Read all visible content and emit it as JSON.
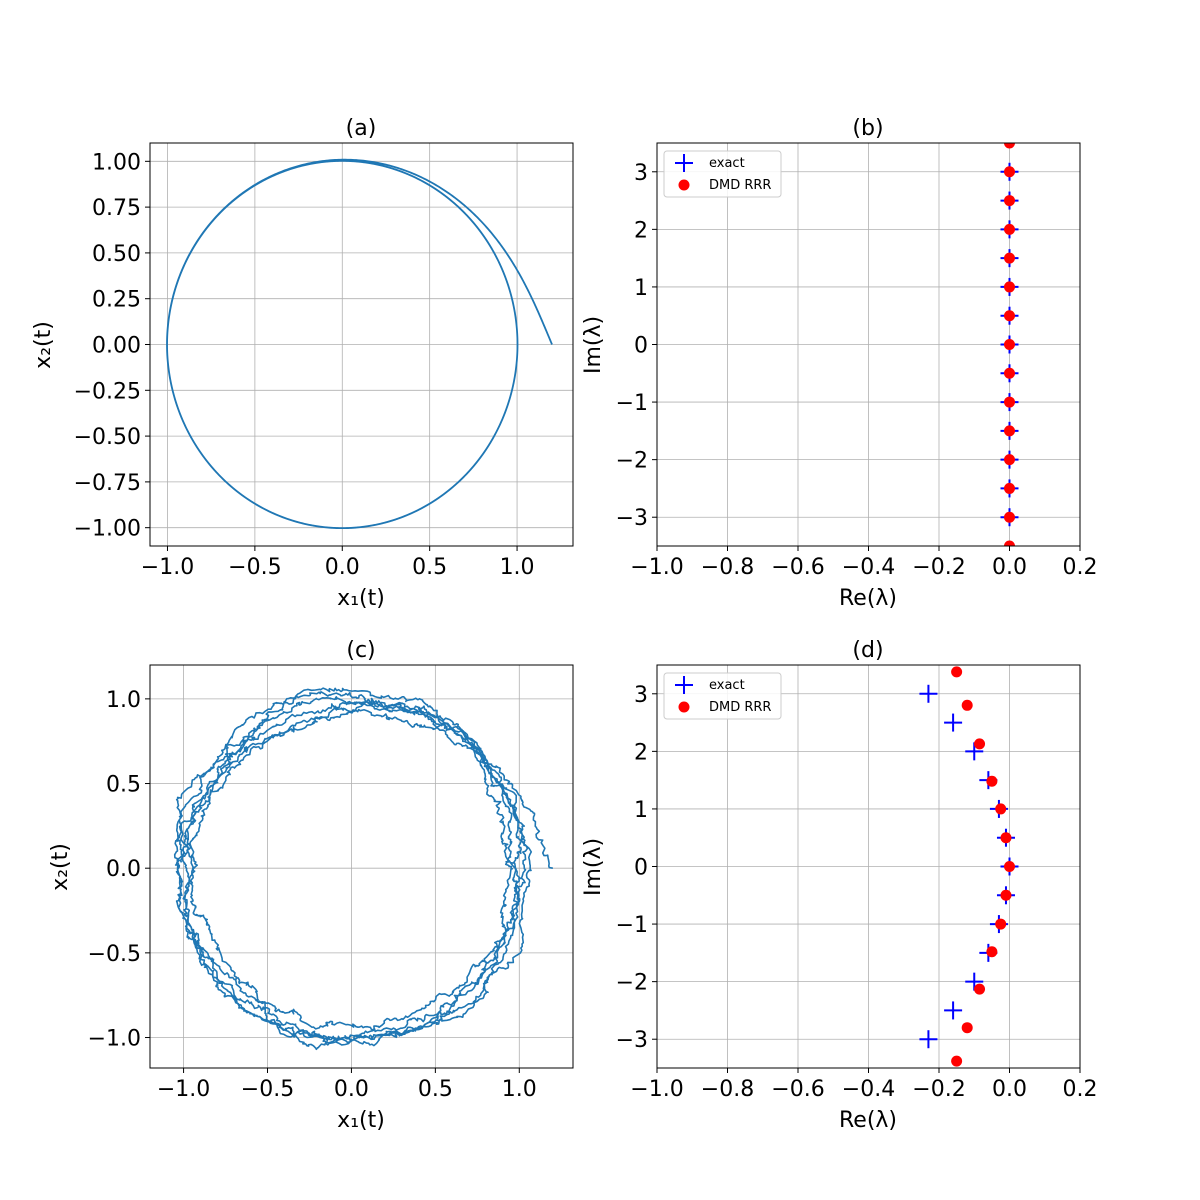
{
  "colors": {
    "trajectory": "#1f77b4",
    "exact": "#0000ff",
    "dmd": "#ff0000",
    "grid": "#b0b0b0"
  },
  "chart_data": [
    {
      "id": "a",
      "type": "line",
      "title": "(a)",
      "xlabel": "x₁(t)",
      "ylabel": "x₂(t)",
      "xlim": [
        -1.1,
        1.32
      ],
      "ylim": [
        -1.1,
        1.1
      ],
      "xticks": [
        -1.0,
        -0.5,
        0.0,
        0.5,
        1.0
      ],
      "xtick_labels": [
        "−1.0",
        "−0.5",
        "0.0",
        "0.5",
        "1.0"
      ],
      "yticks": [
        1.0,
        0.75,
        0.5,
        0.25,
        0.0,
        -0.25,
        -0.5,
        -0.75,
        -1.0
      ],
      "ytick_labels": [
        "1.00",
        "0.75",
        "0.50",
        "0.25",
        "0.00",
        "−0.25",
        "−0.50",
        "−0.75",
        "−1.00"
      ],
      "grid": true,
      "series": [
        {
          "kind": "limit-cycle",
          "start": [
            1.2,
            0.0
          ],
          "radius": 1.0,
          "noise": 0.0
        }
      ]
    },
    {
      "id": "b",
      "type": "scatter",
      "title": "(b)",
      "xlabel": "Re(λ)",
      "ylabel": "Im(λ)",
      "xlim": [
        -1.0,
        0.2
      ],
      "ylim": [
        -3.5,
        3.5
      ],
      "xticks": [
        -1.0,
        -0.8,
        -0.6,
        -0.4,
        -0.2,
        0.0,
        0.2
      ],
      "xtick_labels": [
        "−1.0",
        "−0.8",
        "−0.6",
        "−0.4",
        "−0.2",
        "0.0",
        "0.2"
      ],
      "yticks": [
        3,
        2,
        1,
        0,
        -1,
        -2,
        -3
      ],
      "ytick_labels": [
        "3",
        "2",
        "1",
        "0",
        "−1",
        "−2",
        "−3"
      ],
      "grid": true,
      "legend_position": "upper-left",
      "legend": [
        "exact",
        "DMD RRR"
      ],
      "series": [
        {
          "name": "exact",
          "marker": "plus",
          "points": [
            [
              0,
              3.0
            ],
            [
              0,
              2.5
            ],
            [
              0,
              2.0
            ],
            [
              0,
              1.5
            ],
            [
              0,
              1.0
            ],
            [
              0,
              0.5
            ],
            [
              0,
              0.0
            ],
            [
              0,
              -0.5
            ],
            [
              0,
              -1.0
            ],
            [
              0,
              -1.5
            ],
            [
              0,
              -2.0
            ],
            [
              0,
              -2.5
            ],
            [
              0,
              -3.0
            ]
          ]
        },
        {
          "name": "DMD RRR",
          "marker": "circle",
          "points": [
            [
              0,
              3.5
            ],
            [
              0,
              3.0
            ],
            [
              0,
              2.5
            ],
            [
              0,
              2.0
            ],
            [
              0,
              1.5
            ],
            [
              0,
              1.0
            ],
            [
              0,
              0.5
            ],
            [
              0,
              0.0
            ],
            [
              0,
              -0.5
            ],
            [
              0,
              -1.0
            ],
            [
              0,
              -1.5
            ],
            [
              0,
              -2.0
            ],
            [
              0,
              -2.5
            ],
            [
              0,
              -3.0
            ],
            [
              0,
              -3.5
            ]
          ]
        }
      ]
    },
    {
      "id": "c",
      "type": "line",
      "title": "(c)",
      "xlabel": "x₁(t)",
      "ylabel": "x₂(t)",
      "xlim": [
        -1.2,
        1.32
      ],
      "ylim": [
        -1.18,
        1.2
      ],
      "xticks": [
        -1.0,
        -0.5,
        0.0,
        0.5,
        1.0
      ],
      "xtick_labels": [
        "−1.0",
        "−0.5",
        "0.0",
        "0.5",
        "1.0"
      ],
      "yticks": [
        1.0,
        0.5,
        0.0,
        -0.5,
        -1.0
      ],
      "ytick_labels": [
        "1.0",
        "0.5",
        "0.0",
        "−0.5",
        "−1.0"
      ],
      "grid": true,
      "series": [
        {
          "kind": "noisy-limit-cycle",
          "start": [
            1.2,
            0.0
          ],
          "radius": 1.0,
          "noise": 0.07
        }
      ]
    },
    {
      "id": "d",
      "type": "scatter",
      "title": "(d)",
      "xlabel": "Re(λ)",
      "ylabel": "Im(λ)",
      "xlim": [
        -1.0,
        0.2
      ],
      "ylim": [
        -3.5,
        3.5
      ],
      "xticks": [
        -1.0,
        -0.8,
        -0.6,
        -0.4,
        -0.2,
        0.0,
        0.2
      ],
      "xtick_labels": [
        "−1.0",
        "−0.8",
        "−0.6",
        "−0.4",
        "−0.2",
        "0.0",
        "0.2"
      ],
      "yticks": [
        3,
        2,
        1,
        0,
        -1,
        -2,
        -3
      ],
      "ytick_labels": [
        "3",
        "2",
        "1",
        "0",
        "−1",
        "−2",
        "−3"
      ],
      "grid": true,
      "legend_position": "upper-left",
      "legend": [
        "exact",
        "DMD RRR"
      ],
      "series": [
        {
          "name": "exact",
          "marker": "plus",
          "points": [
            [
              -0.23,
              3.0
            ],
            [
              -0.16,
              2.5
            ],
            [
              -0.1,
              2.0
            ],
            [
              -0.06,
              1.5
            ],
            [
              -0.03,
              1.0
            ],
            [
              -0.01,
              0.5
            ],
            [
              0.0,
              0.0
            ],
            [
              -0.01,
              -0.5
            ],
            [
              -0.03,
              -1.0
            ],
            [
              -0.06,
              -1.5
            ],
            [
              -0.1,
              -2.0
            ],
            [
              -0.16,
              -2.5
            ],
            [
              -0.23,
              -3.0
            ]
          ]
        },
        {
          "name": "DMD RRR",
          "marker": "circle",
          "points": [
            [
              -0.15,
              3.38
            ],
            [
              -0.12,
              2.8
            ],
            [
              -0.085,
              2.13
            ],
            [
              -0.05,
              1.48
            ],
            [
              -0.025,
              1.0
            ],
            [
              -0.01,
              0.5
            ],
            [
              0.0,
              0.0
            ],
            [
              -0.01,
              -0.5
            ],
            [
              -0.025,
              -1.0
            ],
            [
              -0.05,
              -1.48
            ],
            [
              -0.085,
              -2.13
            ],
            [
              -0.12,
              -2.8
            ],
            [
              -0.15,
              -3.38
            ]
          ]
        }
      ]
    }
  ]
}
